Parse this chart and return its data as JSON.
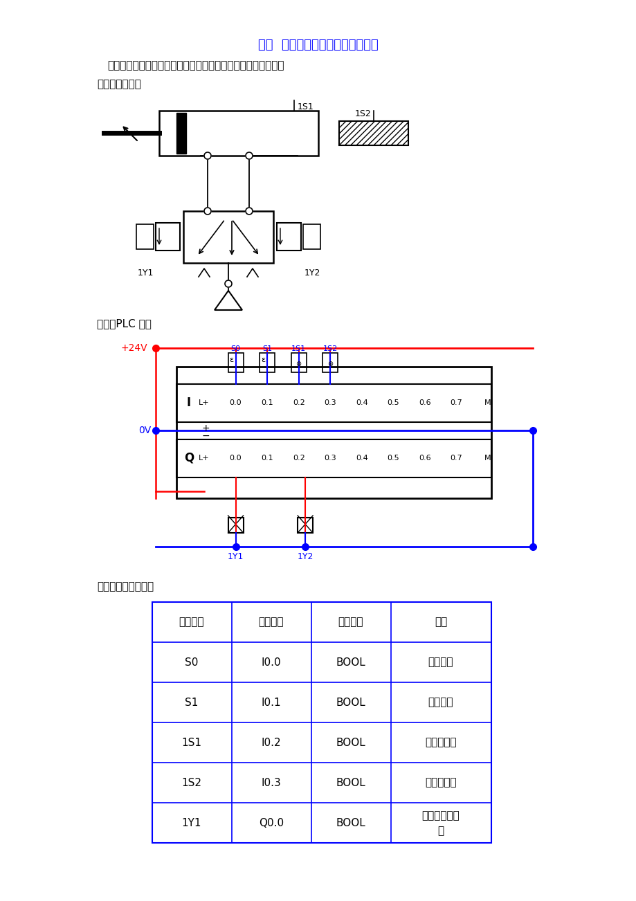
{
  "title": "例六  双作用气缸连续往复运动控制",
  "subtitle": "按启动按钮双作用气缸连续往复运动，按停止按钮，停止运动。",
  "section1": "（一）气控回路",
  "section2": "（二）PLC 接线",
  "section3": "（三）定义符号地址",
  "title_color": "#0000FF",
  "text_color": "#000000",
  "table_headers": [
    "符号地址",
    "绝对地址",
    "类据类型",
    "说明"
  ],
  "table_rows": [
    [
      "S0",
      "I0.0",
      "BOOL",
      "启动按钮"
    ],
    [
      "S1",
      "I0.1",
      "BOOL",
      "停止按钮"
    ],
    [
      "1S1",
      "I0.2",
      "BOOL",
      "位置传感器"
    ],
    [
      "1S2",
      "I0.3",
      "BOOL",
      "位置传感器"
    ],
    [
      "1Y1",
      "Q0.0",
      "BOOL",
      "换向阀电磁线\n圈"
    ]
  ],
  "bg_color": "#FFFFFF",
  "line_color": "#000000",
  "blue_color": "#0000FF",
  "red_color": "#FF0000"
}
